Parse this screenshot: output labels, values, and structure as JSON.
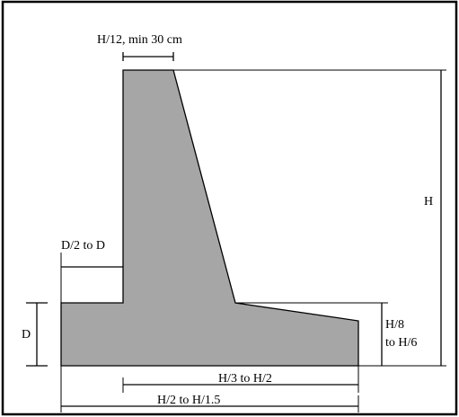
{
  "diagram": {
    "labels": {
      "crest_width": "H/12, min 30 cm",
      "height": "H",
      "toe_projection": "D/2 to D",
      "base_depth": "D",
      "base_thickness_line1": "H/8",
      "base_thickness_line2": "to H/6",
      "heel_length": "H/3 to H/2",
      "base_width": "H/2 to H/1.5"
    },
    "colors": {
      "wall_fill": "#a6a6a6",
      "outline": "#000000",
      "frame": "#000000",
      "background": "#ffffff"
    }
  }
}
